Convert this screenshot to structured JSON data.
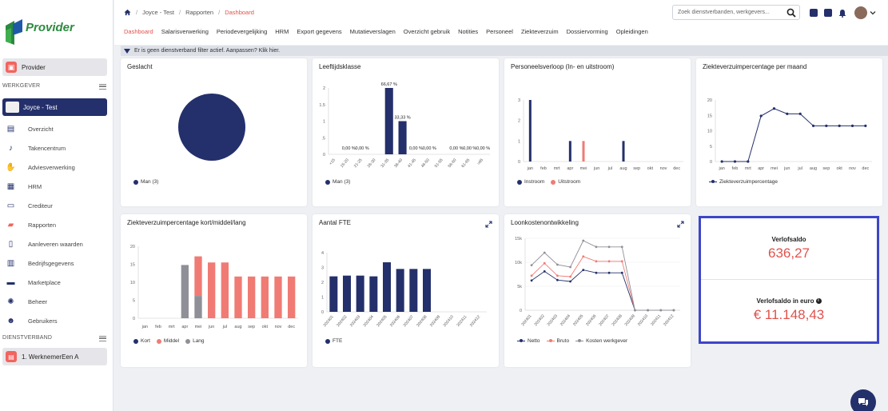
{
  "app": {
    "logo_text": "Provider",
    "colors": {
      "primary": "#24306b",
      "accent": "#e0524d",
      "bar_red": "#f07b74",
      "bar_gray": "#8f8f98",
      "green": "#2b8a3e"
    }
  },
  "sidebar": {
    "org_label": "Provider",
    "section_employee": "WERKGEVER",
    "employee_name": "Joyce - Test",
    "items": [
      {
        "label": "Overzicht",
        "icon": "clipboard-icon"
      },
      {
        "label": "Takencentrum",
        "icon": "bell-icon"
      },
      {
        "label": "Adviesverwerking",
        "icon": "hand-icon"
      },
      {
        "label": "HRM",
        "icon": "database-icon"
      },
      {
        "label": "Crediteur",
        "icon": "inbox-icon"
      },
      {
        "label": "Rapporten",
        "icon": "folder-icon"
      },
      {
        "label": "Aanleveren waarden",
        "icon": "document-icon"
      },
      {
        "label": "Bedrijfsgegevens",
        "icon": "building-icon"
      },
      {
        "label": "Marketplace",
        "icon": "store-icon"
      },
      {
        "label": "Beheer",
        "icon": "gear-icon"
      },
      {
        "label": "Gebruikers",
        "icon": "users-icon"
      }
    ],
    "section_dienstverband": "DIENSTVERBAND",
    "dienstverband_label": "1. WerknemerEen A"
  },
  "topbar": {
    "breadcrumbs": [
      "Joyce - Test",
      "Rapporten",
      "Dashboard"
    ],
    "search_placeholder": "Zoek dienstverbanden, werkgevers...",
    "tabs": [
      "Dashboard",
      "Salarisverwerking",
      "Periodevergelijking",
      "HRM",
      "Export gegevens",
      "Mutatieverslagen",
      "Overzicht gebruik",
      "Notities",
      "Personeel",
      "Ziekteverzuim",
      "Dossiervorming",
      "Opleidingen"
    ]
  },
  "filterbar": {
    "text": "Er is geen dienstverband filter actief. Aanpassen? Klik hier."
  },
  "cards": {
    "geslacht": {
      "title": "Geslacht",
      "legend": [
        "Man (3)"
      ]
    },
    "leeftijd": {
      "title": "Leeftijdsklasse",
      "legend": [
        "Man (3)"
      ]
    },
    "personeel": {
      "title": "Personeelsverloop (In- en uitstroom)",
      "legend": [
        "Instroom",
        "Uitstroom"
      ]
    },
    "verzuim": {
      "title": "Ziekteverzuimpercentage per maand",
      "legend": [
        "Ziekteverzuimpercentage"
      ]
    },
    "kml": {
      "title": "Ziekteverzuimpercentage kort/middel/lang",
      "legend": [
        "Kort",
        "Middel",
        "Lang"
      ]
    },
    "fte": {
      "title": "Aantal FTE",
      "legend": [
        "FTE"
      ]
    },
    "loon": {
      "title": "Loonkostenontwikkeling",
      "legend": [
        "Netto",
        "Bruto",
        "Kosten werkgever"
      ]
    }
  },
  "verlof": {
    "label1": "Verlofsaldo",
    "value1": "636,27",
    "label2": "Verlofsaldo in euro",
    "value2": "€ 11.148,43"
  },
  "chart_data": [
    {
      "type": "pie",
      "title": "Geslacht",
      "categories": [
        "Man"
      ],
      "values": [
        3
      ]
    },
    {
      "type": "bar",
      "title": "Leeftijdsklasse",
      "categories": [
        "<15",
        "15-20",
        "21-25",
        "26-30",
        "31-35",
        "36-40",
        "41-45",
        "46-50",
        "51-55",
        "56-60",
        "61-65",
        ">65"
      ],
      "values": [
        0,
        0,
        0,
        0,
        2,
        1,
        0,
        0,
        0,
        0,
        0,
        0
      ],
      "data_labels": [
        "",
        "0,00 %",
        "0,00 %",
        "",
        "66,67 %",
        "33,33 %",
        "0,00 %",
        "0,00 %",
        "",
        "0,00 %",
        "0,00 %",
        "0,00 %"
      ],
      "ylim": [
        0,
        2
      ],
      "yticks": [
        "0",
        ".5",
        "1",
        "1.5",
        "2"
      ]
    },
    {
      "type": "bar",
      "title": "Personeelsverloop (In- en uitstroom)",
      "categories": [
        "jan",
        "feb",
        "mrt",
        "apr",
        "mei",
        "jun",
        "jul",
        "aug",
        "sep",
        "okt",
        "nov",
        "dec"
      ],
      "series": [
        {
          "name": "Instroom",
          "values": [
            3,
            0,
            0,
            1,
            0,
            0,
            0,
            1,
            0,
            0,
            0,
            0
          ]
        },
        {
          "name": "Uitstroom",
          "values": [
            0,
            0,
            0,
            0,
            1,
            0,
            0,
            0,
            0,
            0,
            0,
            0
          ]
        }
      ],
      "ylim": [
        0,
        3
      ]
    },
    {
      "type": "line",
      "title": "Ziekteverzuimpercentage per maand",
      "categories": [
        "jan",
        "feb",
        "mrt",
        "apr",
        "mei",
        "jun",
        "jul",
        "aug",
        "sep",
        "okt",
        "nov",
        "dec"
      ],
      "series": [
        {
          "name": "Ziekteverzuimpercentage",
          "values": [
            0,
            0,
            0,
            14.8,
            17.2,
            15.5,
            15.5,
            11.6,
            11.6,
            11.6,
            11.6,
            11.6
          ]
        }
      ],
      "ylim": [
        0,
        20
      ]
    },
    {
      "type": "bar",
      "title": "Ziekteverzuimpercentage kort/middel/lang",
      "categories": [
        "jan",
        "feb",
        "mrt",
        "apr",
        "mei",
        "jun",
        "jul",
        "aug",
        "sep",
        "okt",
        "nov",
        "dec"
      ],
      "series": [
        {
          "name": "Kort",
          "values": [
            0,
            0,
            0,
            0,
            0,
            0,
            0,
            0,
            0,
            0,
            0,
            0
          ]
        },
        {
          "name": "Middel",
          "values": [
            0,
            0,
            0,
            0,
            11,
            15.5,
            15.5,
            11.6,
            11.6,
            11.6,
            11.6,
            11.6
          ]
        },
        {
          "name": "Lang",
          "values": [
            0,
            0,
            0,
            14.8,
            6.2,
            0,
            0,
            0,
            0,
            0,
            0,
            0
          ]
        }
      ],
      "ylim": [
        0,
        20
      ]
    },
    {
      "type": "bar",
      "title": "Aantal FTE",
      "categories": [
        "202401",
        "202402",
        "202403",
        "202404",
        "202405",
        "202406",
        "202407",
        "202408",
        "202409",
        "202410",
        "202411",
        "202412"
      ],
      "series": [
        {
          "name": "FTE",
          "values": [
            2.4,
            2.45,
            2.45,
            2.4,
            3.35,
            2.9,
            2.9,
            2.9,
            0,
            0,
            0,
            0
          ]
        }
      ],
      "ylim": [
        0,
        4
      ]
    },
    {
      "type": "line",
      "title": "Loonkostenontwikkeling",
      "categories": [
        "202401",
        "202402",
        "202403",
        "202404",
        "202405",
        "202406",
        "202407",
        "202408",
        "202409",
        "202410",
        "202411",
        "202412"
      ],
      "series": [
        {
          "name": "Netto",
          "values": [
            6200,
            8100,
            6300,
            6000,
            8400,
            7800,
            7800,
            7800,
            0,
            0,
            0,
            0
          ]
        },
        {
          "name": "Bruto",
          "values": [
            7200,
            9800,
            7200,
            7000,
            11200,
            10200,
            10200,
            10200,
            0,
            0,
            0,
            0
          ]
        },
        {
          "name": "Kosten werkgever",
          "values": [
            9400,
            12000,
            9500,
            9000,
            14500,
            13200,
            13200,
            13200,
            0,
            0,
            0,
            0
          ]
        }
      ],
      "ylim": [
        0,
        15000
      ],
      "yticks": [
        "0",
        "5k",
        "10k",
        "15k"
      ]
    }
  ]
}
